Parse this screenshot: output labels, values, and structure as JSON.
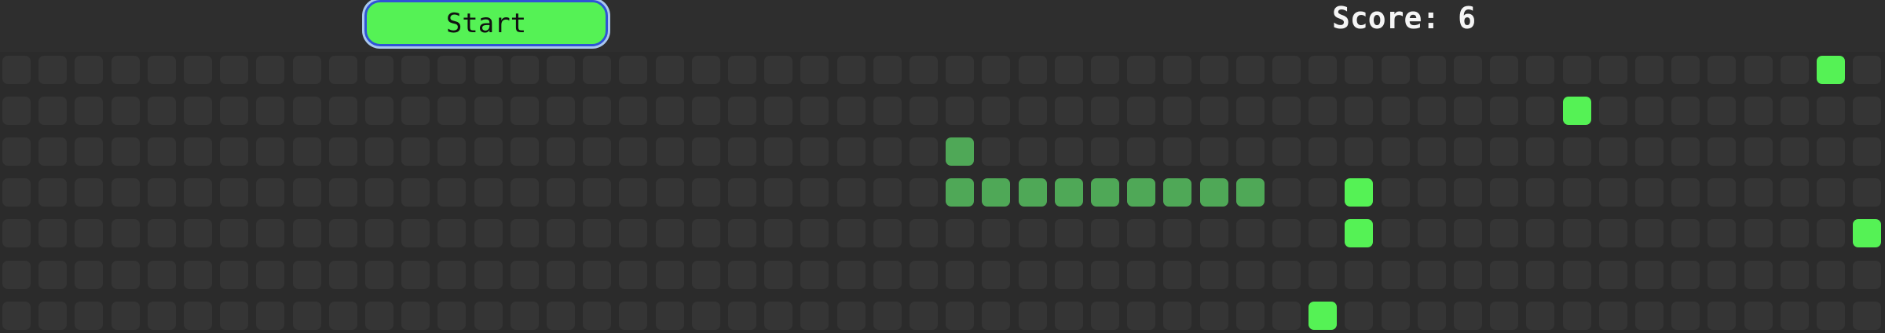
{
  "controls": {
    "start_label": "Start"
  },
  "score": {
    "label": "Score:",
    "value": 6
  },
  "colors": {
    "background": "#2b2b2b",
    "empty_cell": "#353535",
    "snake": "#4fa857",
    "food": "#55f255",
    "button_fill": "#55f255",
    "button_border": "#2f54d6",
    "score_text": "#f5f5f5"
  },
  "board": {
    "columns": 52,
    "rows": 7,
    "snake": [
      [
        26,
        2
      ],
      [
        26,
        3
      ],
      [
        27,
        3
      ],
      [
        28,
        3
      ],
      [
        29,
        3
      ],
      [
        30,
        3
      ],
      [
        31,
        3
      ],
      [
        32,
        3
      ],
      [
        33,
        3
      ],
      [
        34,
        3
      ]
    ],
    "food": [
      [
        50,
        0
      ],
      [
        43,
        1
      ],
      [
        37,
        3
      ],
      [
        37,
        4
      ],
      [
        51,
        4
      ],
      [
        36,
        6
      ]
    ]
  }
}
